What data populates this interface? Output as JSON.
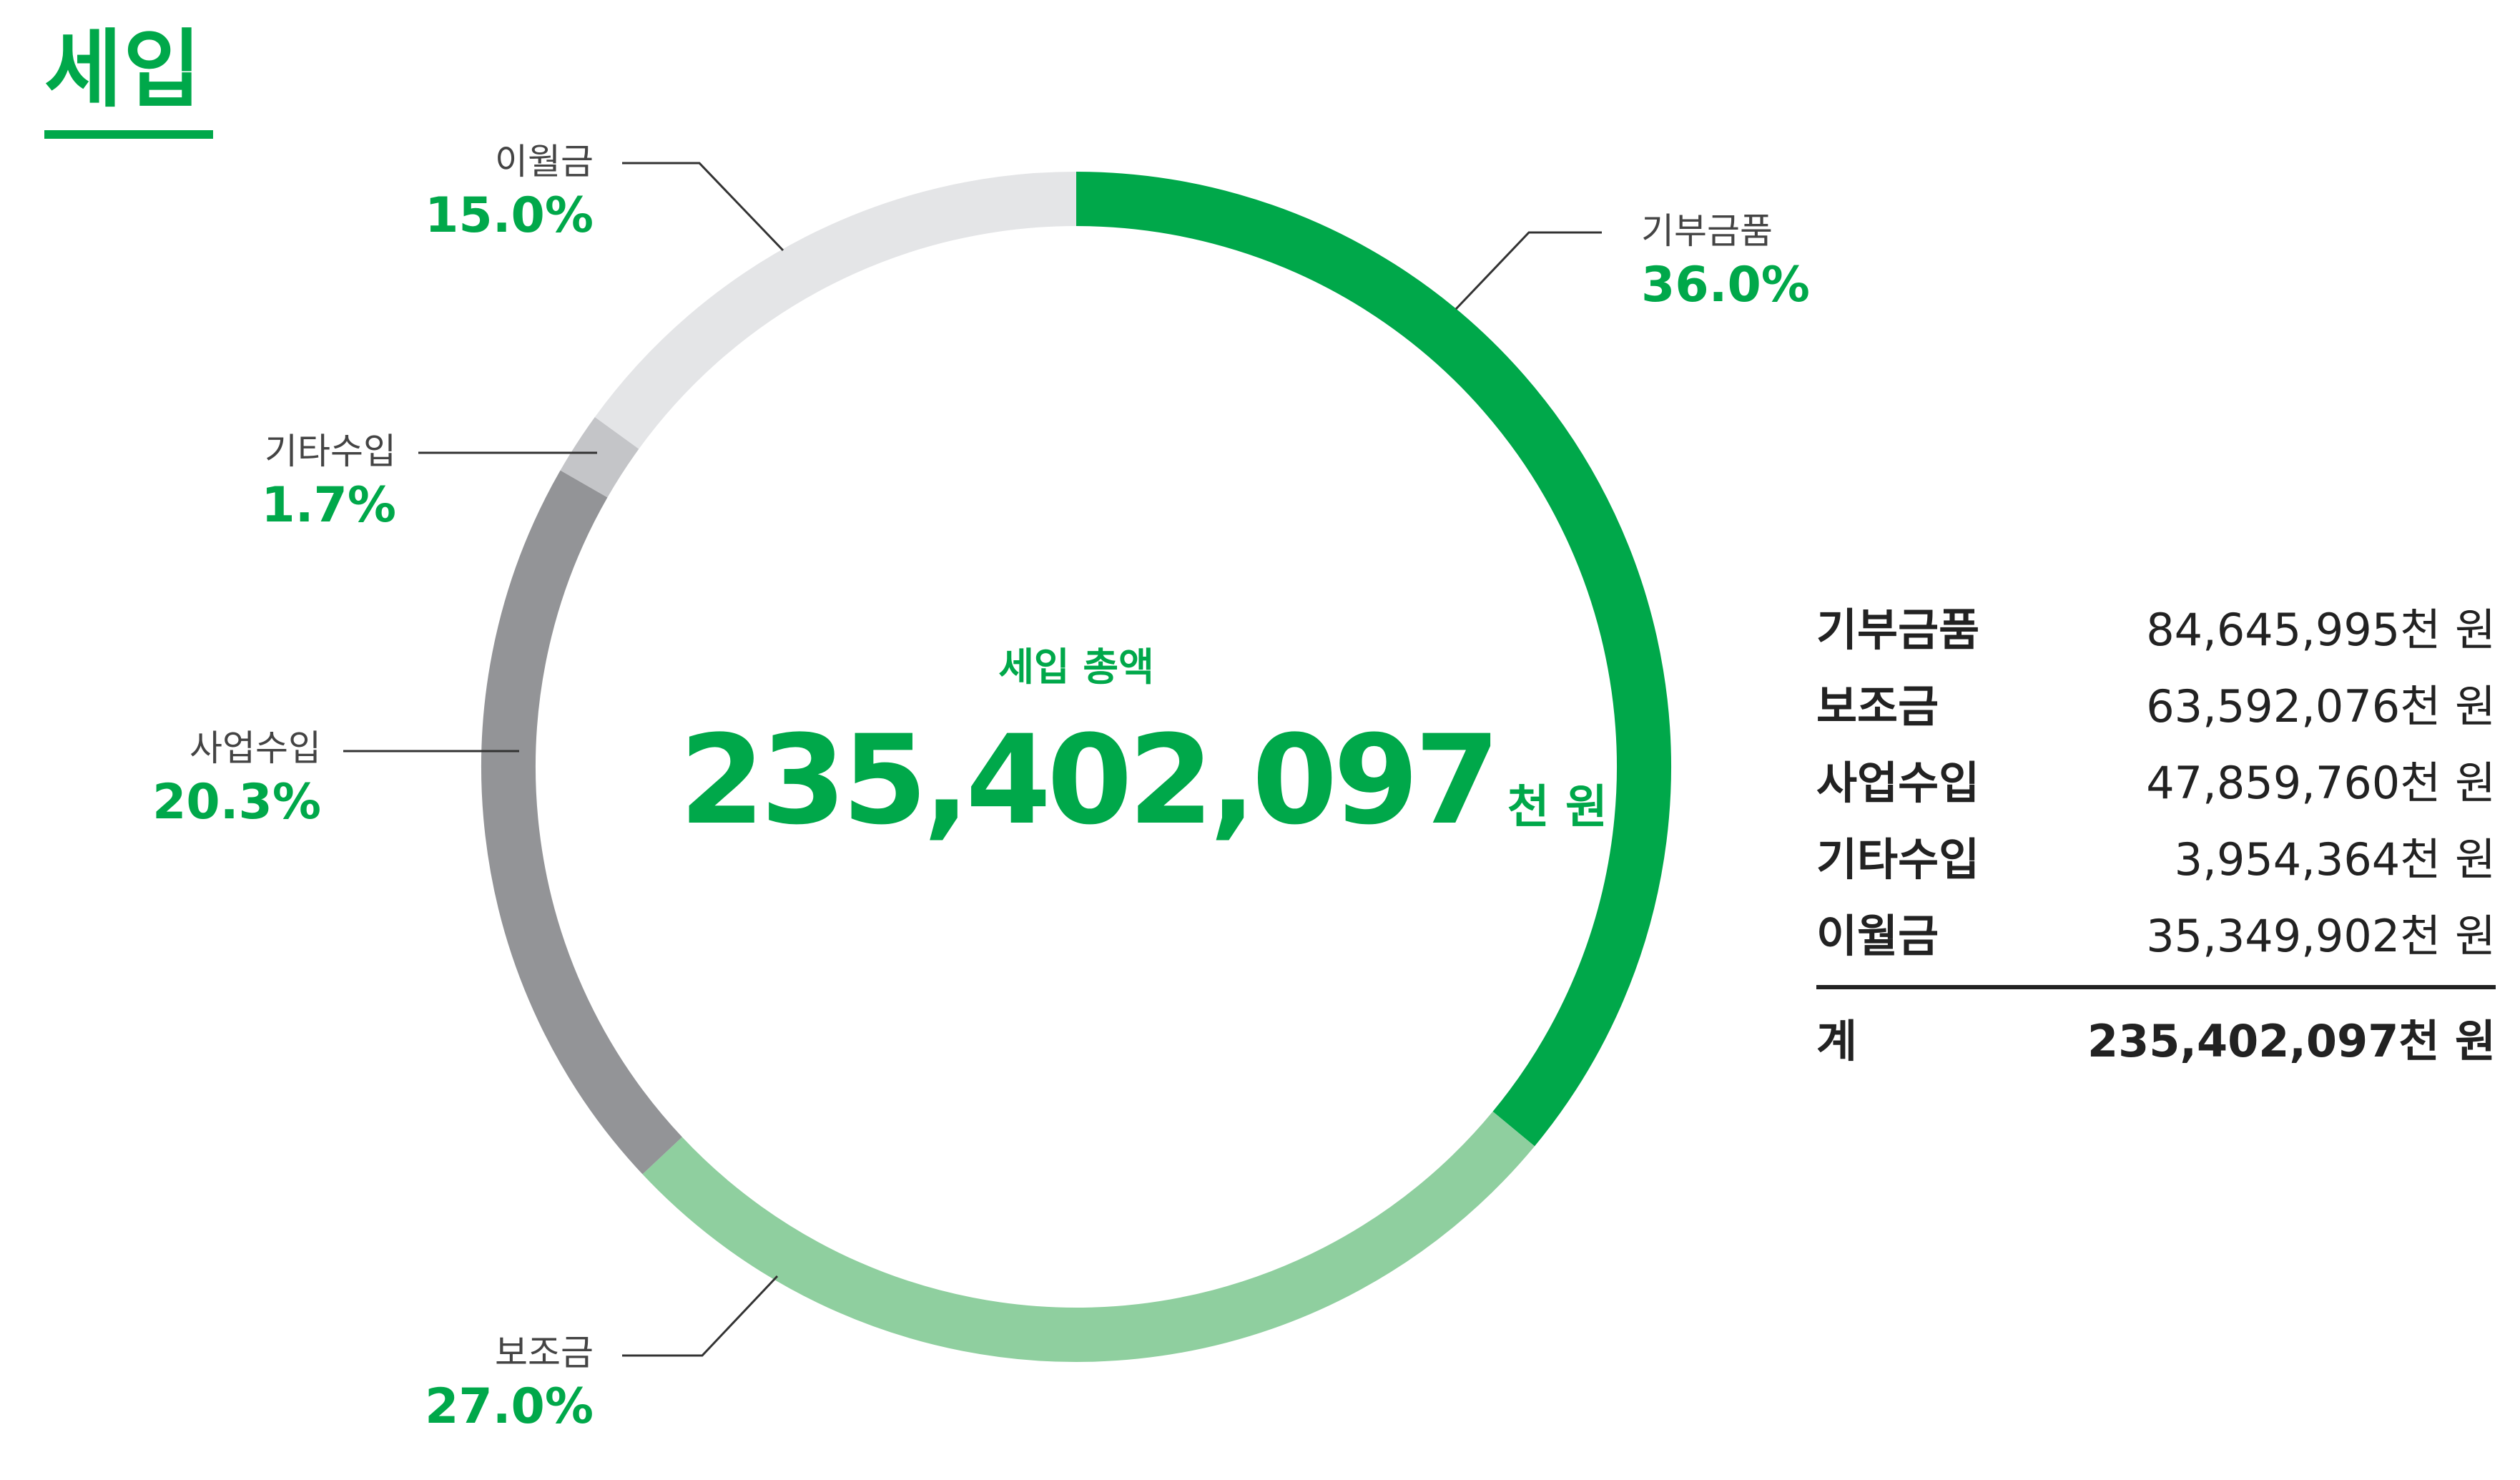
{
  "title": "세입",
  "center": {
    "label": "세입 총액",
    "value": "235,402,097",
    "unit": "천 원"
  },
  "chart_data": {
    "type": "pie",
    "categories": [
      "기부금품",
      "보조금",
      "사업수입",
      "기타수입",
      "이월금"
    ],
    "values": [
      36.0,
      27.0,
      20.3,
      1.7,
      15.0
    ],
    "labels": [
      "36.0%",
      "27.0%",
      "20.3%",
      "1.7%",
      "15.0%"
    ],
    "colors": [
      "#00a84a",
      "#8fcf9f",
      "#939497",
      "#c4c5c8",
      "#e4e5e7"
    ]
  },
  "table": {
    "rows": [
      {
        "name": "기부금품",
        "value": "84,645,995천 원"
      },
      {
        "name": "보조금",
        "value": "63,592,076천 원"
      },
      {
        "name": "사업수입",
        "value": "47,859,760천 원"
      },
      {
        "name": "기타수입",
        "value": "3,954,364천 원"
      },
      {
        "name": "이월금",
        "value": "35,349,902천 원"
      }
    ],
    "total": {
      "name": "계",
      "value": "235,402,097천 원"
    }
  }
}
